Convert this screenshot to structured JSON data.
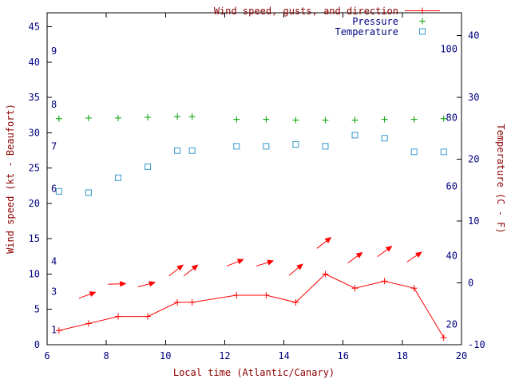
{
  "chart_data": {
    "type": "line",
    "title": "",
    "xlabel": "Local time (Atlantic/Canary)",
    "ylabel_left": "Wind speed (kt - Beaufort)",
    "ylabel_right": "Temperature (C - F)",
    "grid": false,
    "legend_position": "top-right",
    "legend": [
      {
        "label": "Wind speed, gusts, and direction",
        "series": "wind",
        "label_color": "#8b0000"
      },
      {
        "label": "Pressure",
        "series": "pressure",
        "label_color": "#000080"
      },
      {
        "label": "Temperature",
        "series": "temperature",
        "label_color": "#000080"
      }
    ],
    "xlim": [
      6,
      20
    ],
    "x_ticks": [
      6,
      8,
      10,
      12,
      14,
      16,
      18,
      20
    ],
    "ylim_left": [
      0,
      47
    ],
    "y_ticks_left": [
      0,
      5,
      10,
      15,
      20,
      25,
      30,
      35,
      40,
      45
    ],
    "ylim_right": [
      -10,
      43.7
    ],
    "y_ticks_right": [
      -10,
      0,
      10,
      20,
      30,
      40
    ],
    "beaufort_scale_labels": [
      {
        "label": "1",
        "kt": 2.1
      },
      {
        "label": "3",
        "kt": 7.5
      },
      {
        "label": "4",
        "kt": 11.8
      },
      {
        "label": "6",
        "kt": 22.1
      },
      {
        "label": "7",
        "kt": 28.1
      },
      {
        "label": "8",
        "kt": 34.0
      },
      {
        "label": "9",
        "kt": 41.6
      }
    ],
    "fahrenheit_scale_labels": [
      {
        "label": "20",
        "c": -6.7
      },
      {
        "label": "40",
        "c": 4.4
      },
      {
        "label": "60",
        "c": 15.6
      },
      {
        "label": "80",
        "c": 26.7
      },
      {
        "label": "100",
        "c": 37.8
      }
    ],
    "x": [
      6.4,
      7.4,
      8.4,
      9.4,
      10.4,
      10.9,
      12.4,
      13.4,
      14.4,
      15.4,
      16.4,
      17.4,
      18.4,
      19.4
    ],
    "series": [
      {
        "name": "Wind speed (kt)",
        "key": "wind",
        "color": "#ff0000",
        "marker": "plus",
        "line": true,
        "axis": "left",
        "values": [
          2,
          3,
          4,
          4,
          6,
          6,
          7,
          7,
          6,
          10,
          8,
          9,
          8,
          1
        ]
      },
      {
        "name": "Pressure (plotted on left-axis scale)",
        "key": "pressure",
        "color": "#00a000",
        "marker": "plus",
        "line": false,
        "axis": "left",
        "values": [
          32,
          32.1,
          32.1,
          32.2,
          32.3,
          32.3,
          31.9,
          31.9,
          31.8,
          31.8,
          31.8,
          31.9,
          31.9,
          32
        ]
      },
      {
        "name": "Temperature (C)",
        "key": "temperature",
        "color": "#3399cc",
        "marker": "square",
        "line": false,
        "axis": "right",
        "values": [
          14.8,
          14.6,
          17.0,
          18.8,
          21.4,
          21.4,
          22.1,
          22.1,
          22.4,
          22.1,
          23.9,
          23.4,
          21.2,
          21.2
        ]
      }
    ],
    "wind_direction_arrows": [
      {
        "x": 7.35,
        "kt": 7.0,
        "deg": 20
      },
      {
        "x": 8.35,
        "kt": 8.6,
        "deg": 2
      },
      {
        "x": 9.35,
        "kt": 8.5,
        "deg": 15
      },
      {
        "x": 10.35,
        "kt": 10.5,
        "deg": 38
      },
      {
        "x": 10.85,
        "kt": 10.5,
        "deg": 38
      },
      {
        "x": 12.35,
        "kt": 11.6,
        "deg": 22
      },
      {
        "x": 13.35,
        "kt": 11.5,
        "deg": 17
      },
      {
        "x": 14.4,
        "kt": 10.6,
        "deg": 40
      },
      {
        "x": 15.35,
        "kt": 14.4,
        "deg": 38
      },
      {
        "x": 16.4,
        "kt": 12.3,
        "deg": 36
      },
      {
        "x": 17.4,
        "kt": 13.2,
        "deg": 36
      },
      {
        "x": 18.4,
        "kt": 12.4,
        "deg": 34
      }
    ],
    "colors": {
      "axis_title": "#8b0000",
      "tick_label": "#000080",
      "border": "#000000",
      "background": "#ffffff"
    }
  }
}
